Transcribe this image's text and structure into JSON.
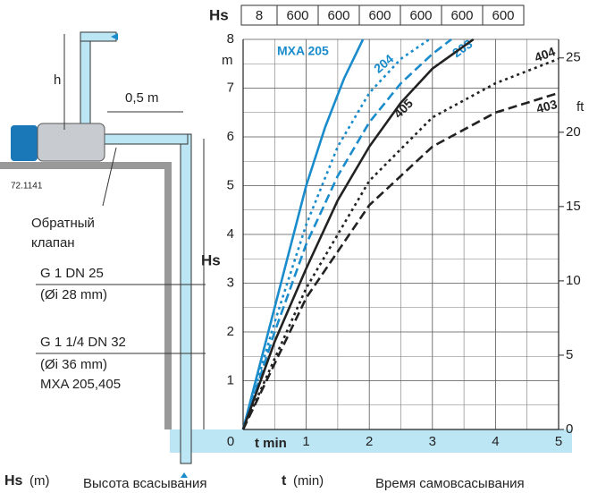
{
  "chart_data": {
    "type": "line",
    "xlabel": "t min",
    "ylabel": "Hs",
    "yunit": "m",
    "y2unit": "ft",
    "header_row": {
      "label": "Hs",
      "cells": [
        8,
        600,
        600,
        600,
        600,
        600,
        600
      ]
    },
    "xlim": [
      0,
      5
    ],
    "xticks": [
      0,
      1,
      2,
      3,
      4,
      5
    ],
    "ylim": [
      0,
      8
    ],
    "yticks": [
      1,
      2,
      3,
      4,
      5,
      6,
      7,
      8
    ],
    "y2lim": [
      0,
      26.25
    ],
    "y2ticks": [
      0,
      5,
      10,
      15,
      20,
      25
    ],
    "grid": true,
    "series": [
      {
        "name": "MXA 205",
        "color": "#1a8ccc",
        "style": "solid",
        "x": [
          0,
          0.4,
          0.7,
          1,
          1.3,
          1.6,
          1.9
        ],
        "values": [
          0,
          2,
          3.5,
          5,
          6.2,
          7.2,
          8
        ]
      },
      {
        "name": "204",
        "color": "#1a8ccc",
        "style": "dotted",
        "x": [
          0,
          0.5,
          1,
          1.5,
          2,
          2.5,
          2.95
        ],
        "values": [
          0,
          2.2,
          4.2,
          5.8,
          6.9,
          7.6,
          8
        ]
      },
      {
        "name": "203",
        "color": "#1a8ccc",
        "style": "dashed",
        "x": [
          0,
          0.5,
          1,
          1.5,
          2,
          2.5,
          3,
          3.3
        ],
        "values": [
          0,
          2,
          3.8,
          5.2,
          6.3,
          7.1,
          7.7,
          8
        ]
      },
      {
        "name": "405",
        "color": "#222222",
        "style": "solid",
        "x": [
          0,
          0.5,
          1,
          1.5,
          2,
          2.5,
          3,
          3.65
        ],
        "values": [
          0,
          1.8,
          3.3,
          4.7,
          5.8,
          6.7,
          7.4,
          8
        ]
      },
      {
        "name": "404",
        "color": "#222222",
        "style": "dotted",
        "x": [
          0,
          1,
          2,
          3,
          4,
          5
        ],
        "values": [
          0,
          2.9,
          5.1,
          6.4,
          7.1,
          7.6
        ]
      },
      {
        "name": "403",
        "color": "#222222",
        "style": "dashed",
        "x": [
          0,
          1,
          2,
          3,
          4,
          5
        ],
        "values": [
          0,
          2.7,
          4.6,
          5.8,
          6.5,
          6.9
        ]
      }
    ]
  },
  "diagram": {
    "h": "h",
    "distance": "0,5 m",
    "code": "72.1141",
    "valve": [
      "Обратный",
      "клапан"
    ],
    "hs": "Hs",
    "pipe1": [
      "G 1   DN 25",
      "(Øi 28 mm)"
    ],
    "pipe2": [
      "G 1 1/4  DN 32",
      "(Øi 36 mm)",
      "MXA 205,405"
    ]
  },
  "footer": {
    "hs": "Hs",
    "hs_unit": "(m)",
    "hs_text": "Высота всасывания",
    "t": "t",
    "t_unit": "(min)",
    "t_text": "Время самовсасывания"
  }
}
